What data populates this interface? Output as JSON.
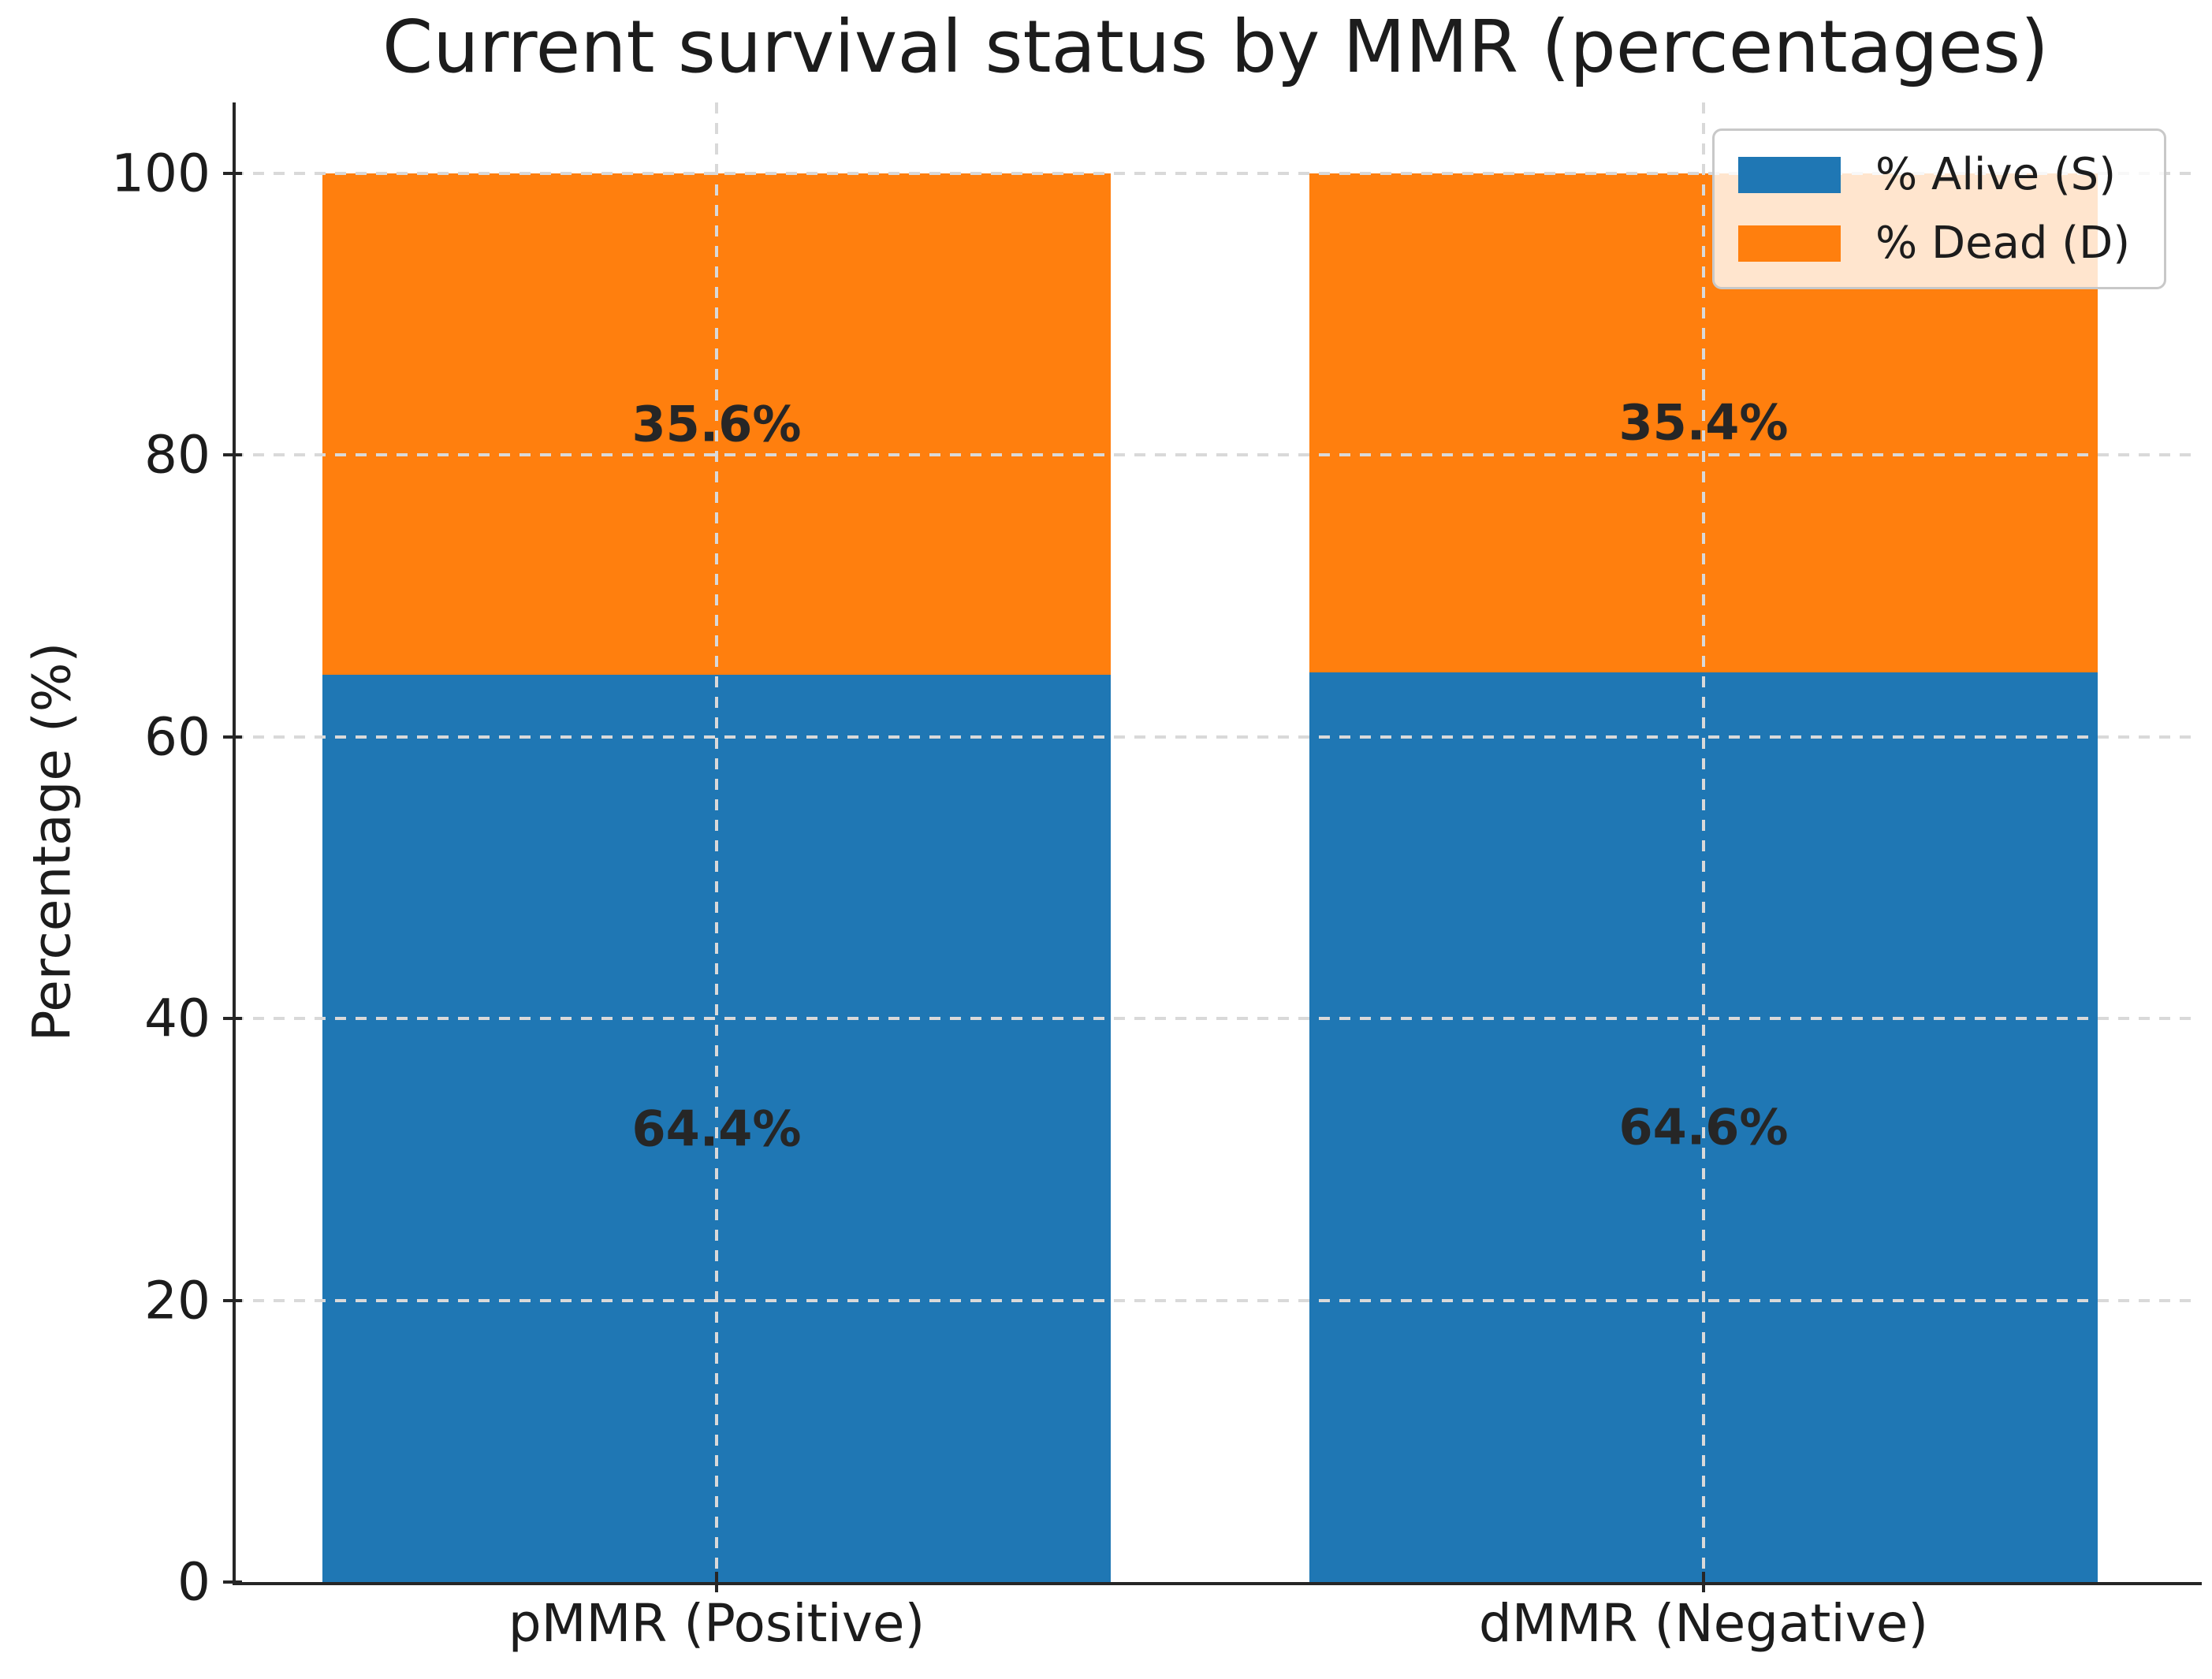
{
  "title": "Current survival status by MMR (percentages)",
  "chart_data": {
    "type": "bar",
    "stacked": true,
    "title": "Current survival status by MMR (percentages)",
    "xlabel": "",
    "ylabel": "Percentage (%)",
    "ylim": [
      0,
      100
    ],
    "yticks": [
      0,
      20,
      40,
      60,
      80,
      100
    ],
    "grid": true,
    "grid_style": "dashed",
    "legend_position": "upper right",
    "categories": [
      "pMMR (Positive)",
      "dMMR (Negative)"
    ],
    "series": [
      {
        "name": "% Alive (S)",
        "color": "#1f77b4",
        "values": [
          64.4,
          64.6
        ],
        "labels": [
          "64.4%",
          "64.6%"
        ]
      },
      {
        "name": "% Dead (D)",
        "color": "#ff7f0e",
        "values": [
          35.6,
          35.4
        ],
        "labels": [
          "35.6%",
          "35.4%"
        ]
      }
    ]
  },
  "colors": {
    "alive": "#1f77b4",
    "dead": "#ff7f0e",
    "gridline": "#d9d9d9",
    "spine": "#262626",
    "text": "#1c1c1c",
    "bar_label_text": "#262626",
    "legend_border": "#c8c8c8"
  }
}
